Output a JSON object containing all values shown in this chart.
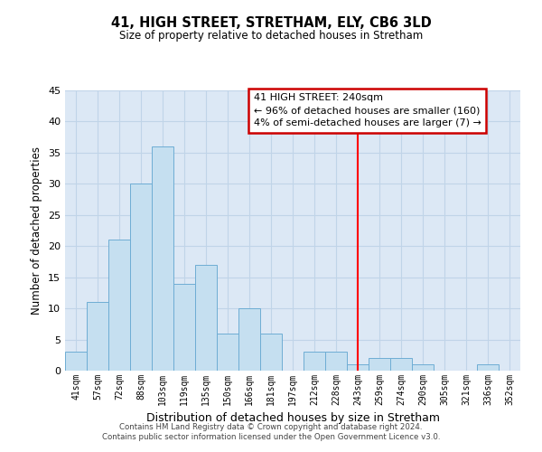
{
  "title": "41, HIGH STREET, STRETHAM, ELY, CB6 3LD",
  "subtitle": "Size of property relative to detached houses in Stretham",
  "xlabel": "Distribution of detached houses by size in Stretham",
  "ylabel": "Number of detached properties",
  "bar_labels": [
    "41sqm",
    "57sqm",
    "72sqm",
    "88sqm",
    "103sqm",
    "119sqm",
    "135sqm",
    "150sqm",
    "166sqm",
    "181sqm",
    "197sqm",
    "212sqm",
    "228sqm",
    "243sqm",
    "259sqm",
    "274sqm",
    "290sqm",
    "305sqm",
    "321sqm",
    "336sqm",
    "352sqm"
  ],
  "bar_values": [
    3,
    11,
    21,
    30,
    36,
    14,
    17,
    6,
    10,
    6,
    0,
    3,
    3,
    1,
    2,
    2,
    1,
    0,
    0,
    1,
    0
  ],
  "bar_color": "#c5dff0",
  "bar_edge_color": "#6eadd4",
  "vline_x_index": 13,
  "vline_color": "red",
  "annotation_title": "41 HIGH STREET: 240sqm",
  "annotation_line1": "← 96% of detached houses are smaller (160)",
  "annotation_line2": "4% of semi-detached houses are larger (7) →",
  "annotation_box_color": "white",
  "annotation_box_edge": "#cc0000",
  "ylim": [
    0,
    45
  ],
  "yticks": [
    0,
    5,
    10,
    15,
    20,
    25,
    30,
    35,
    40,
    45
  ],
  "bg_color": "#dce8f5",
  "grid_color": "#c0d4e8",
  "footer1": "Contains HM Land Registry data © Crown copyright and database right 2024.",
  "footer2": "Contains public sector information licensed under the Open Government Licence v3.0."
}
